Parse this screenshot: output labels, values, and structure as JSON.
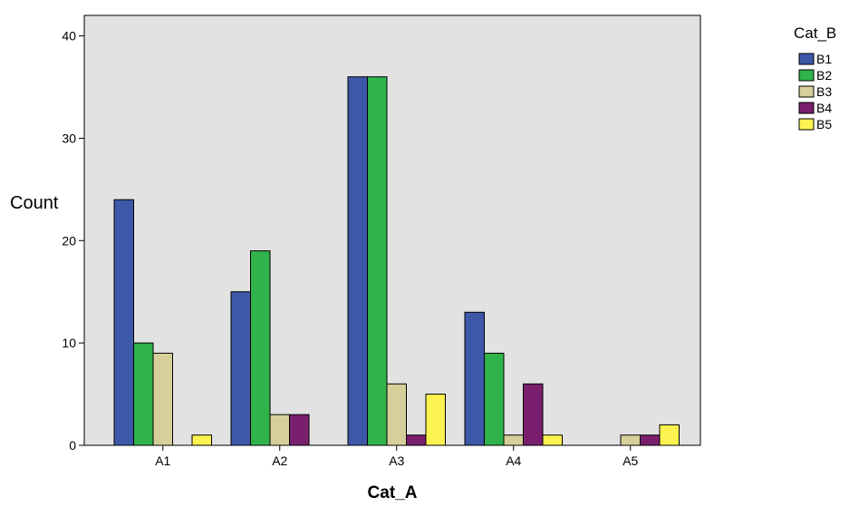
{
  "chart_data": {
    "type": "bar",
    "title": "",
    "xlabel": "Cat_A",
    "ylabel": "Count",
    "ylim": [
      0,
      42
    ],
    "yticks": [
      0,
      10,
      20,
      30,
      40
    ],
    "categories": [
      "A1",
      "A2",
      "A3",
      "A4",
      "A5"
    ],
    "series": [
      {
        "name": "B1",
        "color": "#3d58a8",
        "values": [
          24,
          15,
          36,
          13,
          0
        ]
      },
      {
        "name": "B2",
        "color": "#2fb34a",
        "values": [
          10,
          19,
          36,
          9,
          0
        ]
      },
      {
        "name": "B3",
        "color": "#d6cf9a",
        "values": [
          9,
          3,
          6,
          1,
          1
        ]
      },
      {
        "name": "B4",
        "color": "#7a1f6e",
        "values": [
          0,
          3,
          1,
          6,
          1
        ]
      },
      {
        "name": "B5",
        "color": "#fbf34f",
        "values": [
          1,
          0,
          5,
          1,
          2
        ]
      }
    ],
    "legend_title": "Cat_B",
    "legend_position": "top-right, outside plot",
    "plot_background": "#e2e2e2",
    "grid": false
  }
}
